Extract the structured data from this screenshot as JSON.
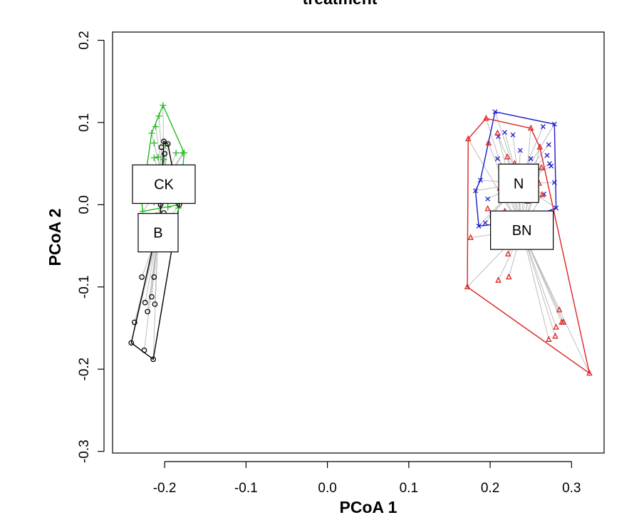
{
  "chart_data": {
    "type": "scatter",
    "title": "treatment",
    "xlabel": "PCoA 1",
    "ylabel": "PCoA 2",
    "xlim": [
      -0.264,
      0.34
    ],
    "ylim": [
      -0.302,
      0.21
    ],
    "x_ticks": [
      -0.2,
      -0.1,
      0.0,
      0.1,
      0.2,
      0.3
    ],
    "x_tick_labels": [
      "-0.2",
      "-0.1",
      "0.0",
      "0.1",
      "0.2",
      "0.3"
    ],
    "y_ticks": [
      -0.3,
      -0.2,
      -0.1,
      0.0,
      0.1,
      0.2
    ],
    "y_tick_labels": [
      "-0.3",
      "-0.2",
      "-0.1",
      "0.0",
      "0.1",
      "0.2"
    ],
    "grid": false,
    "legend": "none",
    "group_labels": [
      {
        "name": "CK",
        "x": -0.201,
        "y": 0.025
      },
      {
        "name": "B",
        "x": -0.208,
        "y": -0.034
      },
      {
        "name": "N",
        "x": 0.235,
        "y": 0.026
      },
      {
        "name": "BN",
        "x": 0.239,
        "y": -0.031
      }
    ],
    "series": [
      {
        "name": "CK",
        "color": "#22bb22",
        "marker": "plus",
        "centroid": [
          -0.201,
          0.025
        ],
        "hull": [
          [
            -0.202,
            0.121
          ],
          [
            -0.176,
            0.063
          ],
          [
            -0.182,
            0.0
          ],
          [
            -0.227,
            -0.008
          ],
          [
            -0.228,
            0.003
          ],
          [
            -0.216,
            0.087
          ]
        ],
        "points": [
          [
            -0.202,
            0.121
          ],
          [
            -0.207,
            0.108
          ],
          [
            -0.211,
            0.095
          ],
          [
            -0.216,
            0.087
          ],
          [
            -0.213,
            0.075
          ],
          [
            -0.199,
            0.072
          ],
          [
            -0.208,
            0.058
          ],
          [
            -0.213,
            0.057
          ],
          [
            -0.201,
            0.055
          ],
          [
            -0.186,
            0.063
          ],
          [
            -0.178,
            0.063
          ],
          [
            -0.176,
            0.063
          ],
          [
            -0.194,
            0.045
          ],
          [
            -0.211,
            0.04
          ],
          [
            -0.224,
            0.03
          ],
          [
            -0.218,
            0.024
          ],
          [
            -0.19,
            0.025
          ],
          [
            -0.183,
            0.02
          ],
          [
            -0.186,
            0.003
          ],
          [
            -0.213,
            0.003
          ],
          [
            -0.204,
            0.002
          ],
          [
            -0.228,
            0.003
          ],
          [
            -0.196,
            -0.003
          ],
          [
            -0.183,
            -0.004
          ],
          [
            -0.227,
            -0.008
          ]
        ]
      },
      {
        "name": "B",
        "color": "#000000",
        "marker": "circle",
        "centroid": [
          -0.208,
          -0.034
        ],
        "hull": [
          [
            -0.201,
            0.077
          ],
          [
            -0.196,
            0.074
          ],
          [
            -0.182,
            0.0
          ],
          [
            -0.214,
            -0.188
          ],
          [
            -0.241,
            -0.168
          ],
          [
            -0.205,
            -0.01
          ]
        ],
        "points": [
          [
            -0.201,
            0.077
          ],
          [
            -0.196,
            0.074
          ],
          [
            -0.204,
            0.07
          ],
          [
            -0.2,
            0.062
          ],
          [
            -0.182,
            0.0
          ],
          [
            -0.205,
            0.0
          ],
          [
            -0.201,
            -0.01
          ],
          [
            -0.21,
            -0.013
          ],
          [
            -0.228,
            -0.088
          ],
          [
            -0.213,
            -0.088
          ],
          [
            -0.216,
            -0.112
          ],
          [
            -0.224,
            -0.119
          ],
          [
            -0.212,
            -0.121
          ],
          [
            -0.221,
            -0.13
          ],
          [
            -0.237,
            -0.143
          ],
          [
            -0.241,
            -0.168
          ],
          [
            -0.225,
            -0.177
          ],
          [
            -0.214,
            -0.188
          ]
        ]
      },
      {
        "name": "N",
        "color": "#1a1acc",
        "marker": "x",
        "centroid": [
          0.235,
          0.026
        ],
        "hull": [
          [
            0.206,
            0.113
          ],
          [
            0.279,
            0.098
          ],
          [
            0.281,
            -0.004
          ],
          [
            0.238,
            -0.02
          ],
          [
            0.186,
            -0.026
          ],
          [
            0.182,
            0.017
          ],
          [
            0.188,
            0.03
          ]
        ],
        "points": [
          [
            0.206,
            0.113
          ],
          [
            0.265,
            0.095
          ],
          [
            0.279,
            0.098
          ],
          [
            0.218,
            0.088
          ],
          [
            0.228,
            0.085
          ],
          [
            0.21,
            0.083
          ],
          [
            0.272,
            0.073
          ],
          [
            0.237,
            0.066
          ],
          [
            0.27,
            0.06
          ],
          [
            0.209,
            0.056
          ],
          [
            0.25,
            0.056
          ],
          [
            0.273,
            0.05
          ],
          [
            0.275,
            0.047
          ],
          [
            0.188,
            0.03
          ],
          [
            0.218,
            0.03
          ],
          [
            0.279,
            0.027
          ],
          [
            0.182,
            0.017
          ],
          [
            0.266,
            0.013
          ],
          [
            0.197,
            0.007
          ],
          [
            0.226,
            0.006
          ],
          [
            0.257,
            0.006
          ],
          [
            0.281,
            -0.004
          ],
          [
            0.202,
            -0.012
          ],
          [
            0.236,
            -0.012
          ],
          [
            0.194,
            -0.022
          ],
          [
            0.186,
            -0.026
          ],
          [
            0.238,
            -0.02
          ]
        ]
      },
      {
        "name": "BN",
        "color": "#dd2222",
        "marker": "triangle",
        "centroid": [
          0.239,
          -0.031
        ],
        "hull": [
          [
            0.195,
            0.105
          ],
          [
            0.25,
            0.093
          ],
          [
            0.261,
            0.07
          ],
          [
            0.322,
            -0.205
          ],
          [
            0.172,
            -0.1
          ],
          [
            0.173,
            0.08
          ]
        ],
        "points": [
          [
            0.195,
            0.105
          ],
          [
            0.25,
            0.093
          ],
          [
            0.209,
            0.087
          ],
          [
            0.173,
            0.08
          ],
          [
            0.261,
            0.07
          ],
          [
            0.198,
            0.075
          ],
          [
            0.221,
            0.058
          ],
          [
            0.23,
            0.05
          ],
          [
            0.263,
            0.045
          ],
          [
            0.26,
            0.026
          ],
          [
            0.212,
            0.02
          ],
          [
            0.24,
            0.015
          ],
          [
            0.264,
            0.012
          ],
          [
            0.246,
            0.004
          ],
          [
            0.197,
            -0.005
          ],
          [
            0.218,
            -0.008
          ],
          [
            0.176,
            -0.04
          ],
          [
            0.222,
            -0.06
          ],
          [
            0.223,
            -0.088
          ],
          [
            0.21,
            -0.092
          ],
          [
            0.172,
            -0.1
          ],
          [
            0.285,
            -0.128
          ],
          [
            0.288,
            -0.143
          ],
          [
            0.29,
            -0.143
          ],
          [
            0.281,
            -0.149
          ],
          [
            0.28,
            -0.16
          ],
          [
            0.272,
            -0.164
          ],
          [
            0.322,
            -0.205
          ]
        ]
      }
    ]
  }
}
